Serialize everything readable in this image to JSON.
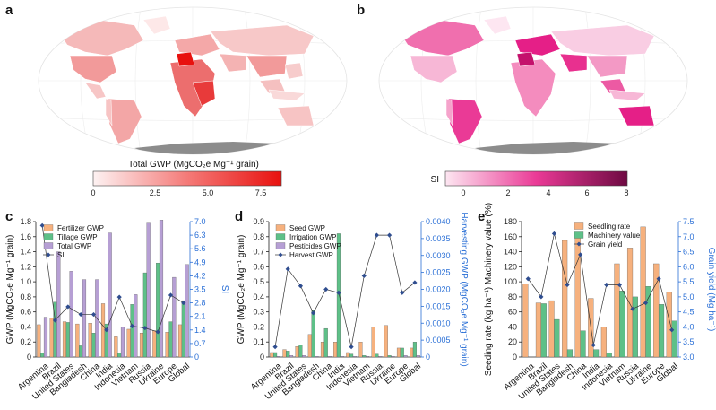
{
  "panels": {
    "a": {
      "letter": "a",
      "colorbar_title": "Total GWP (MgCO₂e Mg⁻¹ grain)",
      "colorbar_ticks": [
        "0",
        "2.5",
        "5.0",
        "7.5"
      ]
    },
    "b": {
      "letter": "b",
      "colorbar_title": "SI",
      "colorbar_ticks": [
        "0",
        "2",
        "4",
        "6",
        "8"
      ]
    },
    "c": {
      "letter": "c"
    },
    "d": {
      "letter": "d"
    },
    "e": {
      "letter": "e"
    }
  },
  "colors": {
    "mapA_low": "#fde4e4",
    "mapA_high": "#e8110e",
    "mapB_low": "#fbd6ea",
    "mapB_high": "#7b0a4b",
    "ocean_bg": "#ffffff",
    "antarctica": "#8c8c8c",
    "orange": "#f6b17e",
    "green": "#5ec088",
    "purple": "#b69fd4",
    "blue": "#2f4d8f",
    "axis_blue": "#2a6fd6"
  },
  "chart_data": [
    {
      "id": "c",
      "type": "bar",
      "categories": [
        "Argentina",
        "Brazil",
        "United States",
        "Bangladesh",
        "China",
        "India",
        "Indonesia",
        "Vietnam",
        "Russia",
        "Ukraine",
        "Europe",
        "Global"
      ],
      "ylabel": "GWP (MgCO₂e Mg⁻¹ grain)",
      "ylim": [
        0,
        1.8
      ],
      "yticks": [
        "0",
        "0.2",
        "0.4",
        "0.6",
        "0.8",
        "1.0",
        "1.2",
        "1.4",
        "1.6",
        "1.8"
      ],
      "y2label": "SI",
      "y2lim": [
        0,
        7.0
      ],
      "y2ticks": [
        "0",
        "0.7",
        "1.4",
        "2.1",
        "2.8",
        "3.5",
        "4.2",
        "4.9",
        "5.6",
        "6.3",
        "7.0"
      ],
      "series": [
        {
          "name": "Fertilizer GWP",
          "color": "orange",
          "values": [
            0.43,
            0.52,
            0.47,
            0.44,
            0.45,
            0.71,
            0.27,
            0.37,
            0.32,
            0.35,
            0.33,
            0.43
          ]
        },
        {
          "name": "Tillage GWP",
          "color": "green",
          "values": [
            0.05,
            0.73,
            0.46,
            0.15,
            0.32,
            0.44,
            0.05,
            0.7,
            1.12,
            1.25,
            0.47,
            0.75
          ]
        },
        {
          "name": "Total GWP",
          "color": "purple",
          "values": [
            0.53,
            1.4,
            1.14,
            1.03,
            1.03,
            1.65,
            0.4,
            0.83,
            1.78,
            1.82,
            1.06,
            1.23
          ]
        },
        {
          "name": "SI",
          "color": "blue",
          "axis": "right",
          "values": [
            6.8,
            1.9,
            2.6,
            2.2,
            2.2,
            1.4,
            3.1,
            1.6,
            1.5,
            1.3,
            3.2,
            2.8
          ]
        }
      ],
      "legend": "top-left"
    },
    {
      "id": "d",
      "type": "bar",
      "categories": [
        "Argentina",
        "Brazil",
        "United States",
        "Bangladesh",
        "China",
        "India",
        "Indonesia",
        "Vietnam",
        "Russia",
        "Ukraine",
        "Europe",
        "Global"
      ],
      "ylabel": "GWP (MgCO₂e Mg⁻¹ grain)",
      "ylim": [
        0,
        0.9
      ],
      "yticks": [
        "0",
        "0.1",
        "0.2",
        "0.3",
        "0.4",
        "0.5",
        "0.6",
        "0.7",
        "0.8",
        "0.9"
      ],
      "y2label": "Harvesting GWP (MgCO₂e Mg⁻¹ grain)",
      "y2lim": [
        0,
        0.004
      ],
      "y2ticks": [
        "0",
        "0.0005",
        "0.0010",
        "0.0015",
        "0.0020",
        "0.0025",
        "0.0030",
        "0.0035",
        "0.0040"
      ],
      "series": [
        {
          "name": "Seed GWP",
          "color": "orange",
          "values": [
            0.03,
            0.05,
            0.07,
            0.15,
            0.1,
            0.1,
            0.03,
            0.1,
            0.2,
            0.21,
            0.06,
            0.06
          ]
        },
        {
          "name": "Irrigation GWP",
          "color": "green",
          "values": [
            0.03,
            0.04,
            0.08,
            0.31,
            0.19,
            0.82,
            0.02,
            0.01,
            0.02,
            0.01,
            0.06,
            0.1
          ]
        },
        {
          "name": "Pesticides GWP",
          "color": "purple",
          "values": [
            0.005,
            0.01,
            0.01,
            0.005,
            0.005,
            0.005,
            0.005,
            0.005,
            0.005,
            0.005,
            0.01,
            0.01
          ]
        },
        {
          "name": "Harvest GWP",
          "color": "blue",
          "axis": "right",
          "values": [
            0.0003,
            0.0026,
            0.0021,
            0.0013,
            0.002,
            0.0019,
            0.0003,
            0.0024,
            0.0036,
            0.0036,
            0.0019,
            0.0022
          ]
        }
      ],
      "legend": "top-left"
    },
    {
      "id": "e",
      "type": "bar",
      "categories": [
        "Argentina",
        "Brazil",
        "United States",
        "Bangladesh",
        "China",
        "India",
        "Indonesia",
        "Vietnam",
        "Russia",
        "Ukraine",
        "Europe",
        "Global"
      ],
      "ylabel": "Seeding rate (kg ha⁻¹) Machinery value (%)",
      "ylim": [
        0,
        180
      ],
      "yticks": [
        "0",
        "20",
        "40",
        "60",
        "80",
        "100",
        "120",
        "140",
        "160",
        "180"
      ],
      "y2label": "Grain yield (Mg ha⁻¹)",
      "y2lim": [
        3.0,
        7.5
      ],
      "y2ticks": [
        "3.0",
        "3.5",
        "4.0",
        "4.5",
        "5.0",
        "5.5",
        "6.0",
        "6.5",
        "7.0",
        "7.5"
      ],
      "series": [
        {
          "name": "Seedling rate",
          "color": "orange",
          "values": [
            97,
            72,
            75,
            155,
            163,
            78,
            40,
            124,
            145,
            173,
            124,
            86
          ]
        },
        {
          "name": "Machinery value",
          "color": "green",
          "values": [
            0,
            71,
            50,
            10,
            35,
            10,
            5,
            88,
            80,
            94,
            70,
            48
          ]
        },
        {
          "name": "Grain yield",
          "color": "blue",
          "axis": "right",
          "values": [
            5.6,
            5.0,
            7.1,
            5.4,
            6.4,
            3.4,
            5.4,
            5.4,
            4.6,
            4.8,
            5.6,
            3.9
          ]
        }
      ],
      "legend": "top-right"
    }
  ]
}
